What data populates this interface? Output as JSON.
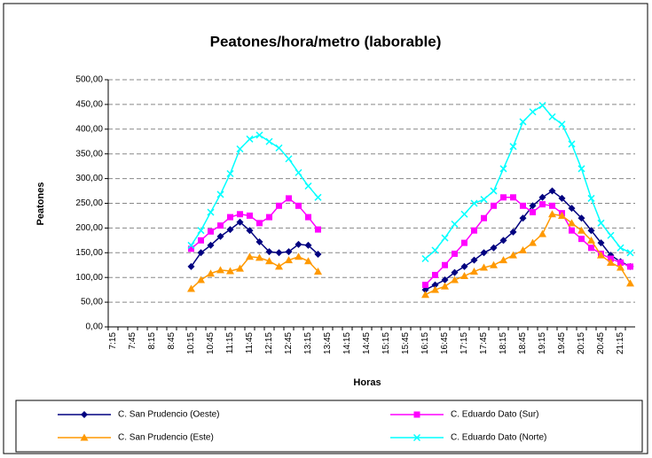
{
  "chart_data": {
    "type": "line",
    "title": "Peatones/hora/metro (laborable)",
    "x_label": "Horas",
    "y_label": "Peatones",
    "categories": [
      "7:15",
      null,
      "7:45",
      null,
      "8:15",
      null,
      "8:45",
      null,
      "10:15",
      null,
      "10:45",
      null,
      "11:15",
      null,
      "11:45",
      null,
      "12:15",
      null,
      "12:45",
      null,
      "13:15",
      null,
      "13:45",
      null,
      "14:15",
      null,
      "14:45",
      null,
      "15:15",
      null,
      "15:45",
      null,
      "16:15",
      null,
      "16:45",
      null,
      "17:15",
      null,
      "17:45",
      null,
      "18:15",
      null,
      "18:45",
      null,
      "19:15",
      null,
      "19:45",
      null,
      "20:15",
      null,
      "20:45",
      null,
      "21:15",
      null
    ],
    "ylim": [
      0,
      500
    ],
    "yticks": [
      {
        "value": 0,
        "label": "0,00"
      },
      {
        "value": 50,
        "label": "50,00"
      },
      {
        "value": 100,
        "label": "100,00"
      },
      {
        "value": 150,
        "label": "150,00"
      },
      {
        "value": 200,
        "label": "200,00"
      },
      {
        "value": 250,
        "label": "250,00"
      },
      {
        "value": 300,
        "label": "300,00"
      },
      {
        "value": 350,
        "label": "350,00"
      },
      {
        "value": 400,
        "label": "400,00"
      },
      {
        "value": 450,
        "label": "450,00"
      },
      {
        "value": 500,
        "label": "500,00"
      }
    ],
    "grid": true,
    "legend": "bottom",
    "series": [
      {
        "name": "C. San Prudencio (Oeste)",
        "color": "#000080",
        "marker": "diamond",
        "values": [
          null,
          null,
          null,
          null,
          null,
          null,
          null,
          null,
          122,
          150,
          165,
          183,
          197,
          212,
          195,
          172,
          152,
          150,
          152,
          167,
          165,
          147,
          null,
          null,
          null,
          null,
          null,
          null,
          null,
          null,
          null,
          null,
          75,
          85,
          95,
          110,
          122,
          135,
          150,
          160,
          175,
          192,
          220,
          245,
          262,
          275,
          260,
          240,
          220,
          195,
          170,
          145,
          132,
          122
        ]
      },
      {
        "name": "C. Eduardo Dato (Sur)",
        "color": "#ff00ff",
        "marker": "square",
        "values": [
          null,
          null,
          null,
          null,
          null,
          null,
          null,
          null,
          158,
          175,
          193,
          205,
          222,
          228,
          225,
          210,
          222,
          245,
          260,
          245,
          222,
          197,
          null,
          null,
          null,
          null,
          null,
          null,
          null,
          null,
          null,
          null,
          85,
          105,
          125,
          148,
          170,
          195,
          220,
          245,
          262,
          262,
          245,
          232,
          248,
          245,
          230,
          195,
          178,
          160,
          148,
          138,
          130,
          122
        ]
      },
      {
        "name": "C. San Prudencio (Este)",
        "color": "#ff9900",
        "marker": "triangle",
        "values": [
          null,
          null,
          null,
          null,
          null,
          null,
          null,
          null,
          77,
          95,
          108,
          115,
          113,
          118,
          142,
          140,
          133,
          122,
          135,
          142,
          133,
          112,
          null,
          null,
          null,
          null,
          null,
          null,
          null,
          null,
          null,
          null,
          65,
          75,
          82,
          95,
          103,
          112,
          120,
          125,
          135,
          145,
          155,
          170,
          188,
          228,
          225,
          210,
          195,
          175,
          145,
          130,
          120,
          88
        ]
      },
      {
        "name": "C. Eduardo Dato (Norte)",
        "color": "#00ffff",
        "marker": "x",
        "values": [
          null,
          null,
          null,
          null,
          null,
          null,
          null,
          null,
          165,
          195,
          232,
          268,
          310,
          360,
          380,
          388,
          375,
          362,
          340,
          312,
          285,
          262,
          null,
          null,
          null,
          null,
          null,
          null,
          null,
          null,
          null,
          null,
          138,
          155,
          180,
          208,
          228,
          250,
          258,
          275,
          320,
          365,
          415,
          435,
          448,
          425,
          410,
          370,
          320,
          260,
          210,
          185,
          160,
          150
        ]
      }
    ]
  }
}
